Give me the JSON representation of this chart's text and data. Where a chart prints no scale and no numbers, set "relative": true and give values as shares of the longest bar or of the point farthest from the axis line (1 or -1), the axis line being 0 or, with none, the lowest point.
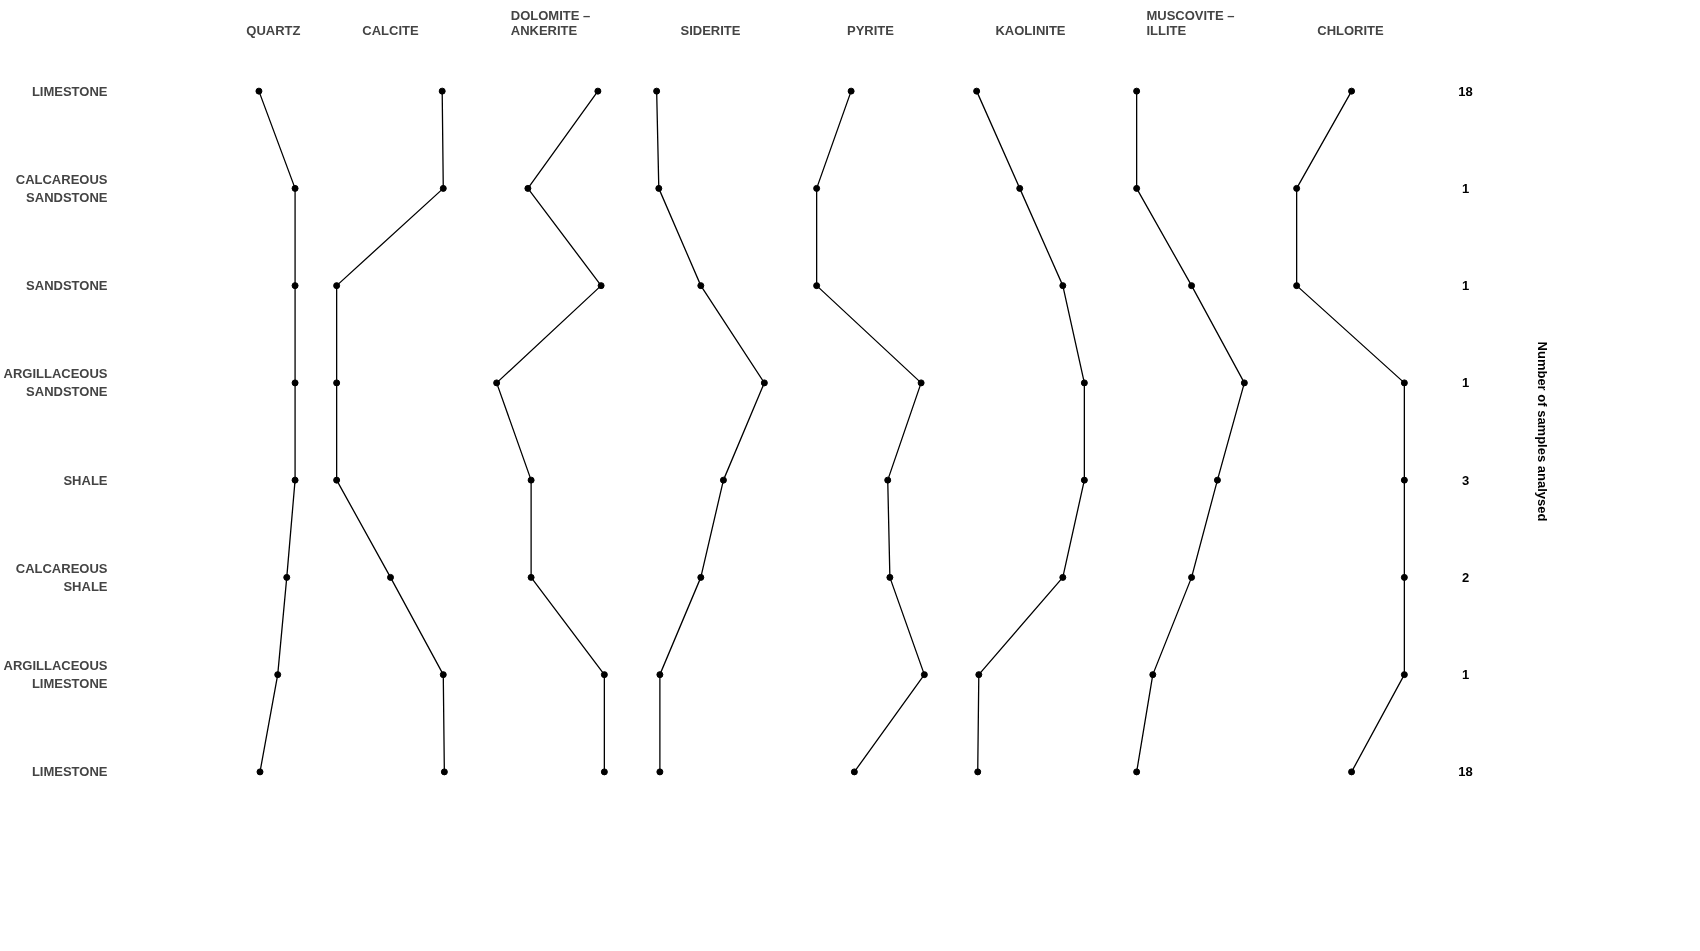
{
  "chart_data": [
    {
      "type": "line",
      "title": "QUARTZ",
      "orientation": "horizontal",
      "relative": true,
      "tick_labels": "y",
      "marker": "circle",
      "categories": [
        "LIMESTONE",
        "CALCAREOUS\nSANDSTONE",
        "SANDSTONE",
        "ARGILLACEOUS\nSANDSTONE",
        "SHALE",
        "CALCAREOUS\nSHALE",
        "ARGILLACEOUS\nLIMESTONE",
        "LIMESTONE"
      ],
      "series": [
        {
          "color": "#000000",
          "values": [
            0,
            1,
            1,
            1,
            1,
            0.77,
            0.52,
            0.03
          ]
        }
      ]
    },
    {
      "type": "line",
      "title": "CALCITE",
      "orientation": "horizontal",
      "relative": true,
      "tick_labels": false,
      "marker": "circle",
      "series": [
        {
          "color": "#000000",
          "values": [
            0.98,
            0.99,
            0,
            0,
            0,
            0.5,
            0.99,
            1
          ]
        }
      ]
    },
    {
      "type": "line",
      "title": "DOLOMITE –\nANKERITE",
      "orientation": "horizontal",
      "relative": true,
      "tick_labels": false,
      "marker": "circle",
      "series": [
        {
          "color": "#000000",
          "values": [
            0.94,
            0.29,
            0.97,
            0,
            0.32,
            0.32,
            1,
            1
          ]
        }
      ]
    },
    {
      "type": "line",
      "title": "SIDERITE",
      "orientation": "horizontal",
      "relative": true,
      "tick_labels": false,
      "marker": "circle",
      "series": [
        {
          "color": "#000000",
          "values": [
            0,
            0.02,
            0.41,
            1,
            0.62,
            0.41,
            0.03,
            0.03
          ]
        }
      ]
    },
    {
      "type": "line",
      "title": "PYRITE",
      "orientation": "horizontal",
      "relative": true,
      "tick_labels": false,
      "marker": "circle",
      "series": [
        {
          "color": "#000000",
          "values": [
            0.32,
            0,
            0,
            0.97,
            0.66,
            0.68,
            1,
            0.35
          ]
        }
      ]
    },
    {
      "type": "line",
      "title": "KAOLINITE",
      "orientation": "horizontal",
      "relative": true,
      "tick_labels": false,
      "marker": "circle",
      "series": [
        {
          "color": "#000000",
          "values": [
            0,
            0.4,
            0.8,
            1,
            1,
            0.8,
            0.02,
            0.01
          ]
        }
      ]
    },
    {
      "type": "line",
      "title": "MUSCOVITE –\nILLITE",
      "orientation": "horizontal",
      "relative": true,
      "tick_labels": false,
      "marker": "circle",
      "series": [
        {
          "color": "#000000",
          "values": [
            0,
            0,
            0.51,
            1,
            0.75,
            0.51,
            0.15,
            0
          ]
        }
      ]
    },
    {
      "type": "line",
      "title": "CHLORITE",
      "orientation": "horizontal",
      "relative": true,
      "tick_labels": false,
      "marker": "circle",
      "series": [
        {
          "color": "#000000",
          "values": [
            0.51,
            0,
            0,
            1,
            1,
            1,
            1,
            0.51
          ]
        }
      ]
    },
    {
      "type": "other",
      "y2label": "Number of samples analysed",
      "annotations": [
        "18",
        "1",
        "1",
        "1",
        "3",
        "2",
        "1",
        "18"
      ]
    }
  ]
}
